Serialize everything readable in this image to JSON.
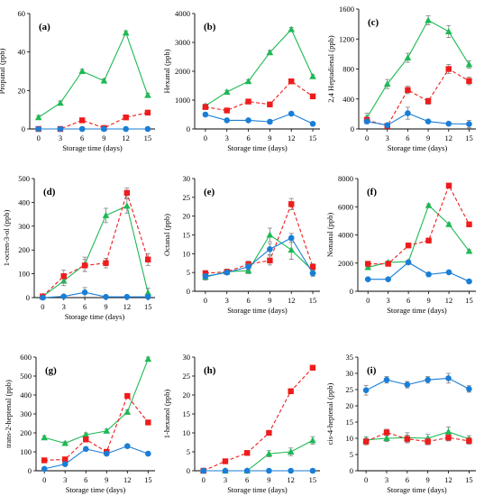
{
  "colors": {
    "green": "#1db954",
    "red": "#ee1c1c",
    "blue": "#1a7ed6",
    "errorbar": "#7f7f7f"
  },
  "chart_data": [
    {
      "type": "line",
      "panel": "(a)",
      "ylabel": "Propanal (ppb)",
      "xlabel": "Storage time (days)",
      "x": [
        0,
        3,
        6,
        9,
        12,
        15
      ],
      "xlim": [
        -1.2,
        16
      ],
      "ylim": [
        0,
        60
      ],
      "yticks": [
        0,
        20,
        40,
        60
      ],
      "series": [
        {
          "color": "green",
          "marker": "triangle",
          "dash": false,
          "values": [
            6,
            13.5,
            30,
            25,
            50,
            17.5
          ],
          "err": [
            1,
            1,
            1,
            1,
            1,
            1
          ]
        },
        {
          "color": "red",
          "marker": "square",
          "dash": true,
          "values": [
            0,
            0,
            4.5,
            0.5,
            6,
            8.5
          ],
          "err": [
            0.3,
            0.3,
            0.5,
            0.5,
            0.5,
            0.5
          ]
        },
        {
          "color": "blue",
          "marker": "circle",
          "dash": false,
          "values": [
            0,
            0,
            0,
            0,
            0,
            0
          ],
          "err": [
            0,
            0,
            0,
            0,
            0,
            0
          ]
        }
      ]
    },
    {
      "type": "line",
      "panel": "(b)",
      "ylabel": "Hexanal (ppb)",
      "xlabel": "Storage time (days)",
      "x": [
        0,
        3,
        6,
        9,
        12,
        15
      ],
      "xlim": [
        -1.5,
        16
      ],
      "ylim": [
        0,
        4000
      ],
      "yticks": [
        0,
        1000,
        2000,
        3000,
        4000
      ],
      "series": [
        {
          "color": "green",
          "marker": "triangle",
          "dash": false,
          "values": [
            800,
            1280,
            1650,
            2650,
            3450,
            1820
          ],
          "err": [
            60,
            60,
            60,
            70,
            70,
            60
          ]
        },
        {
          "color": "red",
          "marker": "square",
          "dash": true,
          "values": [
            760,
            640,
            950,
            850,
            1650,
            1130
          ],
          "err": [
            50,
            40,
            50,
            50,
            60,
            50
          ]
        },
        {
          "color": "blue",
          "marker": "circle",
          "dash": false,
          "values": [
            500,
            300,
            300,
            250,
            530,
            180
          ],
          "err": [
            30,
            30,
            30,
            30,
            30,
            30
          ]
        }
      ]
    },
    {
      "type": "line",
      "panel": "(c)",
      "ylabel": "2,4 Heptadienal (ppb)",
      "xlabel": "Storage time (days)",
      "x": [
        0,
        3,
        6,
        9,
        12,
        15
      ],
      "xlim": [
        -1.2,
        16
      ],
      "ylim": [
        0,
        1600
      ],
      "yticks": [
        0,
        400,
        800,
        1200,
        1600
      ],
      "series": [
        {
          "color": "green",
          "marker": "triangle",
          "dash": false,
          "values": [
            150,
            600,
            950,
            1450,
            1300,
            860
          ],
          "err": [
            60,
            60,
            60,
            60,
            80,
            50
          ]
        },
        {
          "color": "red",
          "marker": "square",
          "dash": true,
          "values": [
            120,
            40,
            520,
            370,
            800,
            640
          ],
          "err": [
            50,
            30,
            50,
            40,
            60,
            50
          ]
        },
        {
          "color": "blue",
          "marker": "circle",
          "dash": false,
          "values": [
            100,
            50,
            210,
            100,
            70,
            65
          ],
          "err": [
            30,
            20,
            80,
            20,
            20,
            50
          ]
        }
      ]
    },
    {
      "type": "line",
      "panel": "(d)",
      "ylabel": "1-octen-3-ol (ppb)",
      "xlabel": "Storage time (days)",
      "x": [
        0,
        3,
        6,
        9,
        12,
        15
      ],
      "xlim": [
        -1.2,
        16
      ],
      "ylim": [
        0,
        500
      ],
      "yticks": [
        0,
        100,
        200,
        300,
        400,
        500
      ],
      "series": [
        {
          "color": "green",
          "marker": "triangle",
          "dash": false,
          "values": [
            5,
            70,
            140,
            345,
            385,
            20
          ],
          "err": [
            5,
            20,
            30,
            30,
            30,
            20
          ]
        },
        {
          "color": "red",
          "marker": "square",
          "dash": true,
          "values": [
            5,
            90,
            135,
            145,
            440,
            160
          ],
          "err": [
            5,
            25,
            25,
            20,
            20,
            25
          ]
        },
        {
          "color": "blue",
          "marker": "circle",
          "dash": false,
          "values": [
            0,
            5,
            22,
            3,
            3,
            3
          ],
          "err": [
            0,
            5,
            20,
            3,
            3,
            3
          ]
        }
      ]
    },
    {
      "type": "line",
      "panel": "(e)",
      "ylabel": "Octanal (ppb)",
      "xlabel": "Storage time (days)",
      "x": [
        0,
        3,
        6,
        9,
        12,
        15
      ],
      "xlim": [
        -1.5,
        16
      ],
      "ylim": [
        0,
        30
      ],
      "yticks": [
        0,
        5,
        10,
        15,
        20,
        25,
        30
      ],
      "series": [
        {
          "color": "green",
          "marker": "triangle",
          "dash": false,
          "values": [
            3.8,
            5.2,
            5.5,
            15,
            11,
            5.5
          ],
          "err": [
            0.8,
            0.5,
            0.8,
            1.8,
            2.5,
            0.8
          ]
        },
        {
          "color": "red",
          "marker": "square",
          "dash": true,
          "values": [
            4.8,
            5.2,
            7.2,
            8.2,
            23.2,
            6.5
          ],
          "err": [
            0.7,
            0.5,
            0.8,
            1.2,
            1.5,
            0.8
          ]
        },
        {
          "color": "blue",
          "marker": "circle",
          "dash": false,
          "values": [
            4,
            5,
            6.5,
            11.2,
            14.2,
            4.8
          ],
          "err": [
            0.6,
            0.5,
            0.8,
            1.5,
            1.2,
            0.8
          ]
        }
      ]
    },
    {
      "type": "line",
      "panel": "(f)",
      "ylabel": "Nonanal (ppb)",
      "xlabel": "Storage time (days)",
      "x": [
        0,
        3,
        6,
        9,
        12,
        15
      ],
      "xlim": [
        -1.5,
        16
      ],
      "ylim": [
        0,
        8000
      ],
      "yticks": [
        0,
        2000,
        4000,
        6000,
        8000
      ],
      "series": [
        {
          "color": "green",
          "marker": "triangle",
          "dash": false,
          "values": [
            1700,
            2050,
            2100,
            6100,
            4750,
            2850
          ],
          "err": [
            100,
            100,
            100,
            100,
            100,
            100
          ]
        },
        {
          "color": "red",
          "marker": "square",
          "dash": true,
          "values": [
            1950,
            1950,
            3250,
            3600,
            7500,
            4750
          ],
          "err": [
            100,
            100,
            100,
            100,
            100,
            100
          ]
        },
        {
          "color": "blue",
          "marker": "circle",
          "dash": false,
          "values": [
            850,
            850,
            2050,
            1200,
            1350,
            700
          ],
          "err": [
            80,
            80,
            100,
            80,
            80,
            80
          ]
        }
      ]
    },
    {
      "type": "line",
      "panel": "(g)",
      "ylabel": "trans-2-heptenal (ppb)",
      "xlabel": "Storage time (days)",
      "x": [
        0,
        3,
        6,
        9,
        12,
        15
      ],
      "xlim": [
        -1.2,
        16
      ],
      "ylim": [
        0,
        600
      ],
      "yticks": [
        0,
        100,
        200,
        300,
        400,
        500,
        600
      ],
      "series": [
        {
          "color": "green",
          "marker": "triangle",
          "dash": false,
          "values": [
            175,
            145,
            190,
            210,
            310,
            590
          ],
          "err": [
            10,
            8,
            10,
            10,
            12,
            10
          ]
        },
        {
          "color": "red",
          "marker": "square",
          "dash": true,
          "values": [
            55,
            60,
            165,
            100,
            395,
            255
          ],
          "err": [
            8,
            8,
            10,
            8,
            12,
            10
          ]
        },
        {
          "color": "blue",
          "marker": "circle",
          "dash": false,
          "values": [
            10,
            35,
            115,
            90,
            130,
            90
          ],
          "err": [
            5,
            5,
            8,
            8,
            8,
            8
          ]
        }
      ]
    },
    {
      "type": "line",
      "panel": "(h)",
      "ylabel": "1-hexanol (ppb)",
      "xlabel": "Storage time (days)",
      "x": [
        0,
        3,
        6,
        9,
        12,
        15
      ],
      "xlim": [
        -1.2,
        16
      ],
      "ylim": [
        0,
        30
      ],
      "yticks": [
        0,
        5,
        10,
        15,
        20,
        25,
        30
      ],
      "series": [
        {
          "color": "green",
          "marker": "triangle",
          "dash": false,
          "values": [
            0,
            0,
            0,
            4.5,
            5,
            8
          ],
          "err": [
            0,
            0,
            0,
            0.8,
            1,
            1
          ]
        },
        {
          "color": "red",
          "marker": "square",
          "dash": true,
          "values": [
            0,
            2.5,
            4.7,
            10,
            21,
            27.2
          ],
          "err": [
            0,
            0,
            0,
            0,
            0,
            0
          ]
        },
        {
          "color": "blue",
          "marker": "circle",
          "dash": false,
          "values": [
            0,
            0,
            0,
            0,
            0,
            0
          ],
          "err": [
            0,
            0,
            0,
            0,
            0,
            0
          ]
        }
      ]
    },
    {
      "type": "line",
      "panel": "(i)",
      "ylabel": "cis-4-heptenal (ppb)",
      "xlabel": "Storage time (days)",
      "x": [
        0,
        3,
        6,
        9,
        12,
        15
      ],
      "xlim": [
        -1.2,
        16
      ],
      "ylim": [
        0,
        35
      ],
      "yticks": [
        0,
        5,
        10,
        15,
        20,
        25,
        30,
        35
      ],
      "series": [
        {
          "color": "green",
          "marker": "triangle",
          "dash": false,
          "values": [
            9.5,
            10,
            10.2,
            10,
            12,
            9.8
          ],
          "err": [
            1,
            1,
            1.5,
            1.2,
            1.5,
            1
          ]
        },
        {
          "color": "red",
          "marker": "square",
          "dash": true,
          "values": [
            9,
            11.8,
            9.8,
            9,
            10.2,
            9.2
          ],
          "err": [
            1,
            1,
            1.2,
            1,
            1,
            1
          ]
        },
        {
          "color": "blue",
          "marker": "circle",
          "dash": false,
          "values": [
            24.8,
            28,
            26.5,
            28,
            28.5,
            25.2
          ],
          "err": [
            1.5,
            1,
            1,
            1,
            1.5,
            1
          ]
        }
      ]
    }
  ]
}
